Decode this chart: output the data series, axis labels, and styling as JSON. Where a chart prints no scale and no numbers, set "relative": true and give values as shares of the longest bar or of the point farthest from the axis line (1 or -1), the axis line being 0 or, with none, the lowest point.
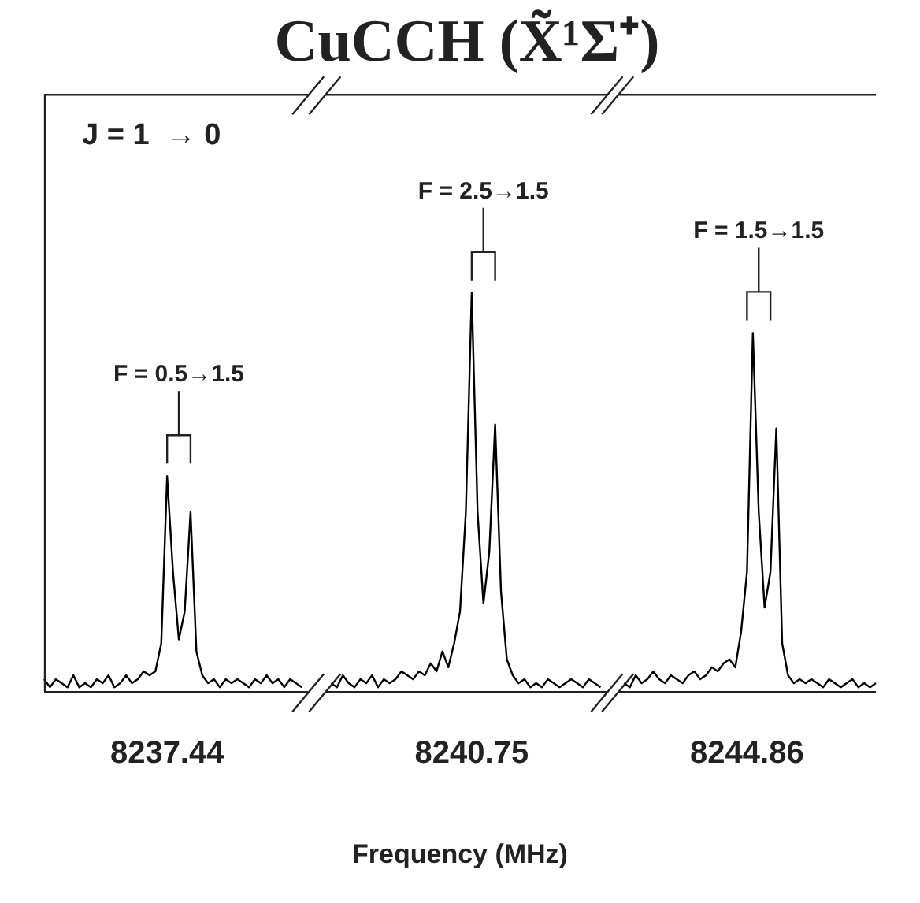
{
  "chart_data": {
    "type": "line",
    "title": "CuCCH (X̃¹Σ⁺)",
    "xlabel": "Frequency (MHz)",
    "relative": true,
    "color": "#000000",
    "grid": false,
    "legend": false,
    "marker": "none",
    "categories": [
      null,
      null,
      null,
      null,
      null,
      null,
      null,
      null,
      null,
      null,
      null,
      null,
      null,
      null,
      null,
      null,
      null,
      null,
      null,
      null,
      null,
      "8237.44",
      null,
      null,
      null,
      null,
      null,
      null,
      null,
      null,
      null,
      null,
      null,
      null,
      null,
      null,
      null,
      null,
      null,
      null,
      null,
      null,
      null,
      null,
      null,
      null,
      null,
      null,
      null,
      null,
      null,
      null,
      null,
      null,
      null,
      null,
      null,
      null,
      null,
      null,
      null,
      null,
      null,
      null,
      null,
      null,
      null,
      null,
      null,
      null,
      null,
      null,
      null,
      "8240.75",
      null,
      null,
      null,
      null,
      null,
      null,
      null,
      null,
      null,
      null,
      null,
      null,
      null,
      null,
      null,
      null,
      null,
      null,
      null,
      null,
      null,
      null,
      null,
      null,
      null,
      null,
      null,
      null,
      null,
      null,
      null,
      null,
      null,
      null,
      null,
      null,
      null,
      null,
      null,
      null,
      null,
      null,
      null,
      null,
      null,
      null,
      "8244.86",
      null,
      null,
      null,
      null,
      null,
      null,
      null,
      null,
      null,
      null,
      null,
      null,
      null,
      null,
      null,
      null,
      null,
      null,
      null,
      null,
      null,
      null
    ],
    "values": [
      0.03,
      0.01,
      0.03,
      0.02,
      0.01,
      0.04,
      0.01,
      0.02,
      0.01,
      0.03,
      0.02,
      0.04,
      0.01,
      0.02,
      0.04,
      0.02,
      0.03,
      0.05,
      0.04,
      0.05,
      0.12,
      0.54,
      0.3,
      0.13,
      0.2,
      0.45,
      0.1,
      0.04,
      0.02,
      0.03,
      0.01,
      0.03,
      0.02,
      0.03,
      0.02,
      0.01,
      0.03,
      0.02,
      0.04,
      0.02,
      0.03,
      0.01,
      0.03,
      0.02,
      0.01,
      null,
      null,
      null,
      null,
      0.02,
      0.01,
      0.04,
      0.02,
      0.01,
      0.03,
      0.02,
      0.04,
      0.01,
      0.03,
      0.02,
      0.03,
      0.05,
      0.04,
      0.03,
      0.05,
      0.04,
      0.07,
      0.05,
      0.1,
      0.06,
      0.12,
      0.2,
      0.45,
      1.0,
      0.45,
      0.22,
      0.35,
      0.67,
      0.25,
      0.08,
      0.04,
      0.02,
      0.03,
      0.01,
      0.02,
      0.01,
      0.03,
      0.02,
      0.01,
      0.02,
      0.03,
      0.02,
      0.01,
      0.03,
      0.02,
      0.01,
      null,
      null,
      null,
      0.02,
      0.01,
      0.04,
      0.02,
      0.03,
      0.05,
      0.03,
      0.02,
      0.04,
      0.03,
      0.02,
      0.04,
      0.05,
      0.03,
      0.04,
      0.06,
      0.05,
      0.07,
      0.08,
      0.06,
      0.15,
      0.3,
      0.9,
      0.45,
      0.21,
      0.3,
      0.66,
      0.12,
      0.04,
      0.02,
      0.03,
      0.02,
      0.03,
      0.02,
      0.01,
      0.03,
      0.02,
      0.01,
      0.02,
      0.03,
      0.01,
      0.02,
      0.01,
      0.02
    ],
    "annotations": [
      "J = 1  → 0",
      "F = 0.5→1.5",
      "F = 2.5→1.5",
      "F = 1.5→1.5"
    ]
  }
}
